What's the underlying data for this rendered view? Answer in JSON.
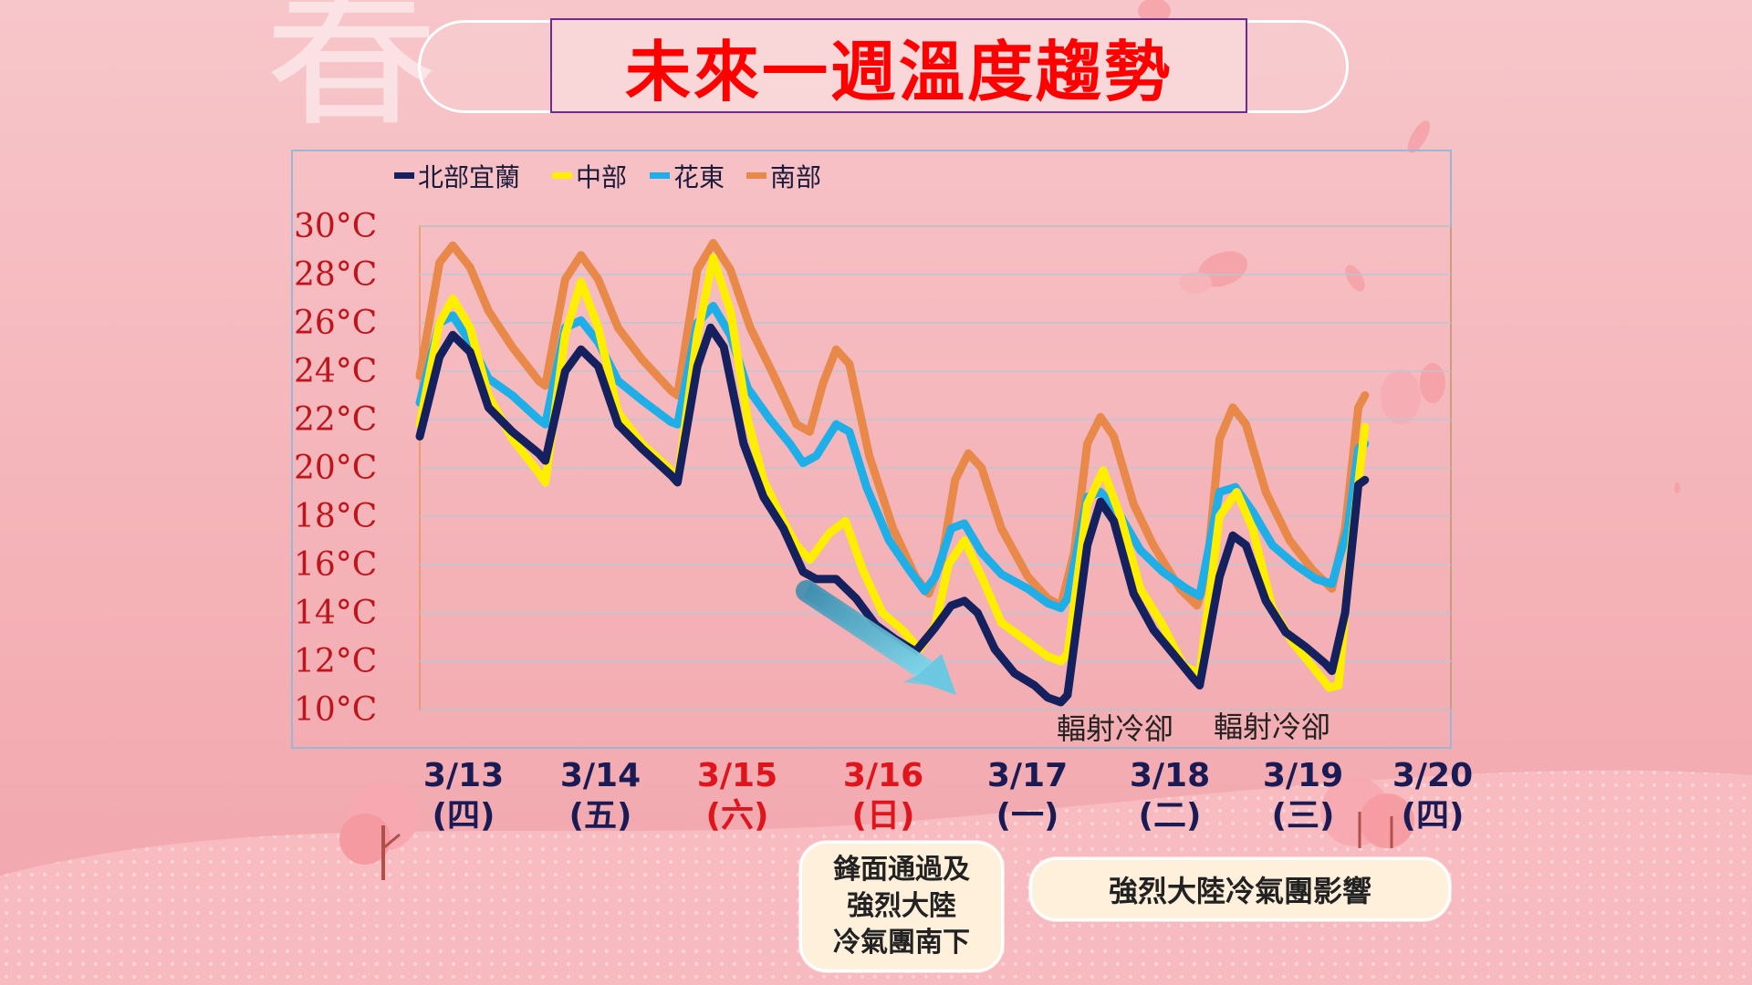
{
  "title": "未來一週溫度趨勢",
  "background_text": "春",
  "colors": {
    "north": "#14215e",
    "central": "#ffee00",
    "east": "#1eaee8",
    "south": "#e8894a",
    "weekend": "#e0141b",
    "weekday": "#1a1a55",
    "arrow": "#3aa0c4"
  },
  "chart_data": {
    "type": "line",
    "title": "",
    "ylim": [
      10,
      30
    ],
    "y_ticks": [
      "30°C",
      "28°C",
      "26°C",
      "24°C",
      "22°C",
      "20°C",
      "18°C",
      "16°C",
      "14°C",
      "12°C",
      "10°C"
    ],
    "x_labels": [
      {
        "date": "3/13",
        "day": "(四)",
        "weekend": false
      },
      {
        "date": "3/14",
        "day": "(五)",
        "weekend": false
      },
      {
        "date": "3/15",
        "day": "(六)",
        "weekend": true
      },
      {
        "date": "3/16",
        "day": "(日)",
        "weekend": true
      },
      {
        "date": "3/17",
        "day": "(一)",
        "weekend": false
      },
      {
        "date": "3/18",
        "day": "(二)",
        "weekend": false
      },
      {
        "date": "3/19",
        "day": "(三)",
        "weekend": false
      },
      {
        "date": "3/20",
        "day": "(四)",
        "weekend": false
      }
    ],
    "x_range": [
      3.1,
      10.9
    ],
    "series": [
      {
        "name": "北部宜蘭",
        "color": "#14215e",
        "points": [
          [
            3.1,
            21.3
          ],
          [
            3.25,
            24.6
          ],
          [
            3.35,
            25.5
          ],
          [
            3.48,
            24.8
          ],
          [
            3.62,
            22.5
          ],
          [
            3.8,
            21.5
          ],
          [
            4.0,
            20.6
          ],
          [
            4.05,
            20.3
          ],
          [
            4.2,
            24.0
          ],
          [
            4.32,
            24.9
          ],
          [
            4.45,
            24.2
          ],
          [
            4.6,
            21.8
          ],
          [
            4.78,
            20.8
          ],
          [
            5.0,
            19.7
          ],
          [
            5.05,
            19.4
          ],
          [
            5.2,
            24.2
          ],
          [
            5.3,
            25.8
          ],
          [
            5.4,
            25.0
          ],
          [
            5.55,
            21.0
          ],
          [
            5.7,
            18.8
          ],
          [
            5.85,
            17.5
          ],
          [
            6.0,
            15.7
          ],
          [
            6.1,
            15.4
          ],
          [
            6.25,
            15.4
          ],
          [
            6.4,
            14.6
          ],
          [
            6.55,
            13.5
          ],
          [
            6.7,
            12.9
          ],
          [
            6.85,
            12.4
          ],
          [
            7.0,
            13.4
          ],
          [
            7.12,
            14.3
          ],
          [
            7.22,
            14.5
          ],
          [
            7.32,
            14.0
          ],
          [
            7.45,
            12.5
          ],
          [
            7.6,
            11.5
          ],
          [
            7.75,
            11.0
          ],
          [
            7.85,
            10.5
          ],
          [
            7.95,
            10.3
          ],
          [
            8.0,
            10.6
          ],
          [
            8.15,
            16.8
          ],
          [
            8.25,
            18.6
          ],
          [
            8.35,
            17.8
          ],
          [
            8.5,
            14.8
          ],
          [
            8.65,
            13.3
          ],
          [
            8.8,
            12.3
          ],
          [
            8.95,
            11.3
          ],
          [
            9.0,
            11.0
          ],
          [
            9.15,
            15.5
          ],
          [
            9.25,
            17.2
          ],
          [
            9.35,
            16.8
          ],
          [
            9.5,
            14.5
          ],
          [
            9.65,
            13.2
          ],
          [
            9.8,
            12.6
          ],
          [
            9.95,
            11.9
          ],
          [
            10.0,
            11.6
          ],
          [
            10.1,
            14.0
          ],
          [
            10.2,
            19.3
          ],
          [
            10.25,
            19.5
          ]
        ]
      },
      {
        "name": "中部",
        "color": "#ffee00",
        "points": [
          [
            3.1,
            21.8
          ],
          [
            3.25,
            26.0
          ],
          [
            3.35,
            27.0
          ],
          [
            3.48,
            25.8
          ],
          [
            3.62,
            23.0
          ],
          [
            3.8,
            21.2
          ],
          [
            4.0,
            19.8
          ],
          [
            4.05,
            19.4
          ],
          [
            4.2,
            25.5
          ],
          [
            4.32,
            27.7
          ],
          [
            4.45,
            25.8
          ],
          [
            4.6,
            22.3
          ],
          [
            4.78,
            21.0
          ],
          [
            5.0,
            19.9
          ],
          [
            5.05,
            19.5
          ],
          [
            5.2,
            25.5
          ],
          [
            5.32,
            28.7
          ],
          [
            5.45,
            26.5
          ],
          [
            5.58,
            22.0
          ],
          [
            5.7,
            19.5
          ],
          [
            5.85,
            17.8
          ],
          [
            5.95,
            16.8
          ],
          [
            6.05,
            16.2
          ],
          [
            6.2,
            17.3
          ],
          [
            6.32,
            17.8
          ],
          [
            6.45,
            15.8
          ],
          [
            6.6,
            14.0
          ],
          [
            6.75,
            13.3
          ],
          [
            6.88,
            12.5
          ],
          [
            7.0,
            13.5
          ],
          [
            7.1,
            16.0
          ],
          [
            7.22,
            17.0
          ],
          [
            7.35,
            15.5
          ],
          [
            7.5,
            13.6
          ],
          [
            7.7,
            12.8
          ],
          [
            7.85,
            12.2
          ],
          [
            7.95,
            12.0
          ],
          [
            8.0,
            12.3
          ],
          [
            8.15,
            18.5
          ],
          [
            8.27,
            19.9
          ],
          [
            8.4,
            18.0
          ],
          [
            8.55,
            15.0
          ],
          [
            8.72,
            13.5
          ],
          [
            8.88,
            11.8
          ],
          [
            9.0,
            11.5
          ],
          [
            9.15,
            18.0
          ],
          [
            9.28,
            19.0
          ],
          [
            9.4,
            17.5
          ],
          [
            9.55,
            14.2
          ],
          [
            9.7,
            12.8
          ],
          [
            9.85,
            11.8
          ],
          [
            9.98,
            10.9
          ],
          [
            10.05,
            11.0
          ],
          [
            10.15,
            17.0
          ],
          [
            10.25,
            21.7
          ]
        ]
      },
      {
        "name": "花東",
        "color": "#1eaee8",
        "points": [
          [
            3.1,
            22.7
          ],
          [
            3.25,
            26.0
          ],
          [
            3.35,
            26.3
          ],
          [
            3.48,
            25.2
          ],
          [
            3.62,
            23.7
          ],
          [
            3.8,
            23.0
          ],
          [
            4.0,
            22.0
          ],
          [
            4.05,
            21.8
          ],
          [
            4.2,
            25.8
          ],
          [
            4.32,
            26.1
          ],
          [
            4.45,
            25.2
          ],
          [
            4.6,
            23.6
          ],
          [
            4.78,
            22.8
          ],
          [
            5.0,
            21.9
          ],
          [
            5.05,
            21.8
          ],
          [
            5.2,
            26.0
          ],
          [
            5.32,
            26.7
          ],
          [
            5.45,
            25.5
          ],
          [
            5.58,
            23.3
          ],
          [
            5.75,
            22.0
          ],
          [
            5.9,
            21.0
          ],
          [
            6.0,
            20.2
          ],
          [
            6.1,
            20.5
          ],
          [
            6.25,
            21.8
          ],
          [
            6.35,
            21.5
          ],
          [
            6.48,
            19.2
          ],
          [
            6.65,
            17.0
          ],
          [
            6.8,
            15.8
          ],
          [
            6.92,
            14.9
          ],
          [
            7.0,
            15.5
          ],
          [
            7.12,
            17.5
          ],
          [
            7.22,
            17.7
          ],
          [
            7.35,
            16.5
          ],
          [
            7.5,
            15.6
          ],
          [
            7.7,
            15.0
          ],
          [
            7.85,
            14.4
          ],
          [
            7.95,
            14.2
          ],
          [
            8.0,
            14.6
          ],
          [
            8.15,
            18.8
          ],
          [
            8.25,
            19.0
          ],
          [
            8.38,
            18.2
          ],
          [
            8.55,
            16.6
          ],
          [
            8.72,
            15.7
          ],
          [
            8.9,
            15.0
          ],
          [
            9.0,
            14.7
          ],
          [
            9.15,
            19.0
          ],
          [
            9.27,
            19.2
          ],
          [
            9.4,
            18.2
          ],
          [
            9.55,
            16.8
          ],
          [
            9.72,
            16.0
          ],
          [
            9.88,
            15.4
          ],
          [
            10.0,
            15.2
          ],
          [
            10.12,
            17.5
          ],
          [
            10.2,
            20.8
          ],
          [
            10.25,
            21.0
          ]
        ]
      },
      {
        "name": "南部",
        "color": "#e8894a",
        "points": [
          [
            3.1,
            23.8
          ],
          [
            3.25,
            28.5
          ],
          [
            3.35,
            29.2
          ],
          [
            3.48,
            28.3
          ],
          [
            3.62,
            26.5
          ],
          [
            3.8,
            25.0
          ],
          [
            4.0,
            23.6
          ],
          [
            4.05,
            23.4
          ],
          [
            4.2,
            27.8
          ],
          [
            4.32,
            28.8
          ],
          [
            4.45,
            27.8
          ],
          [
            4.6,
            25.8
          ],
          [
            4.78,
            24.5
          ],
          [
            5.0,
            23.2
          ],
          [
            5.05,
            23.0
          ],
          [
            5.2,
            28.2
          ],
          [
            5.32,
            29.3
          ],
          [
            5.45,
            28.2
          ],
          [
            5.6,
            25.8
          ],
          [
            5.78,
            23.8
          ],
          [
            5.95,
            21.8
          ],
          [
            6.05,
            21.5
          ],
          [
            6.15,
            23.5
          ],
          [
            6.25,
            24.9
          ],
          [
            6.35,
            24.3
          ],
          [
            6.5,
            20.5
          ],
          [
            6.68,
            17.5
          ],
          [
            6.85,
            15.5
          ],
          [
            6.95,
            14.8
          ],
          [
            7.05,
            16.2
          ],
          [
            7.15,
            19.5
          ],
          [
            7.25,
            20.6
          ],
          [
            7.35,
            20.0
          ],
          [
            7.5,
            17.5
          ],
          [
            7.7,
            15.5
          ],
          [
            7.85,
            14.6
          ],
          [
            7.95,
            14.3
          ],
          [
            8.05,
            16.5
          ],
          [
            8.15,
            21.0
          ],
          [
            8.25,
            22.1
          ],
          [
            8.35,
            21.3
          ],
          [
            8.5,
            18.5
          ],
          [
            8.65,
            16.8
          ],
          [
            8.85,
            15.0
          ],
          [
            8.98,
            14.3
          ],
          [
            9.05,
            15.5
          ],
          [
            9.15,
            21.2
          ],
          [
            9.25,
            22.5
          ],
          [
            9.35,
            21.8
          ],
          [
            9.5,
            19.0
          ],
          [
            9.68,
            17.0
          ],
          [
            9.85,
            15.8
          ],
          [
            10.0,
            15.0
          ],
          [
            10.1,
            17.5
          ],
          [
            10.2,
            22.5
          ],
          [
            10.25,
            23.0
          ]
        ]
      }
    ]
  },
  "annotations": [
    "輻射冷卻",
    "輻射冷卻"
  ],
  "notes": {
    "front": "鋒面通過及\n強烈大陸\n冷氣團南下",
    "cold_air": "強烈大陸冷氣團影響"
  }
}
